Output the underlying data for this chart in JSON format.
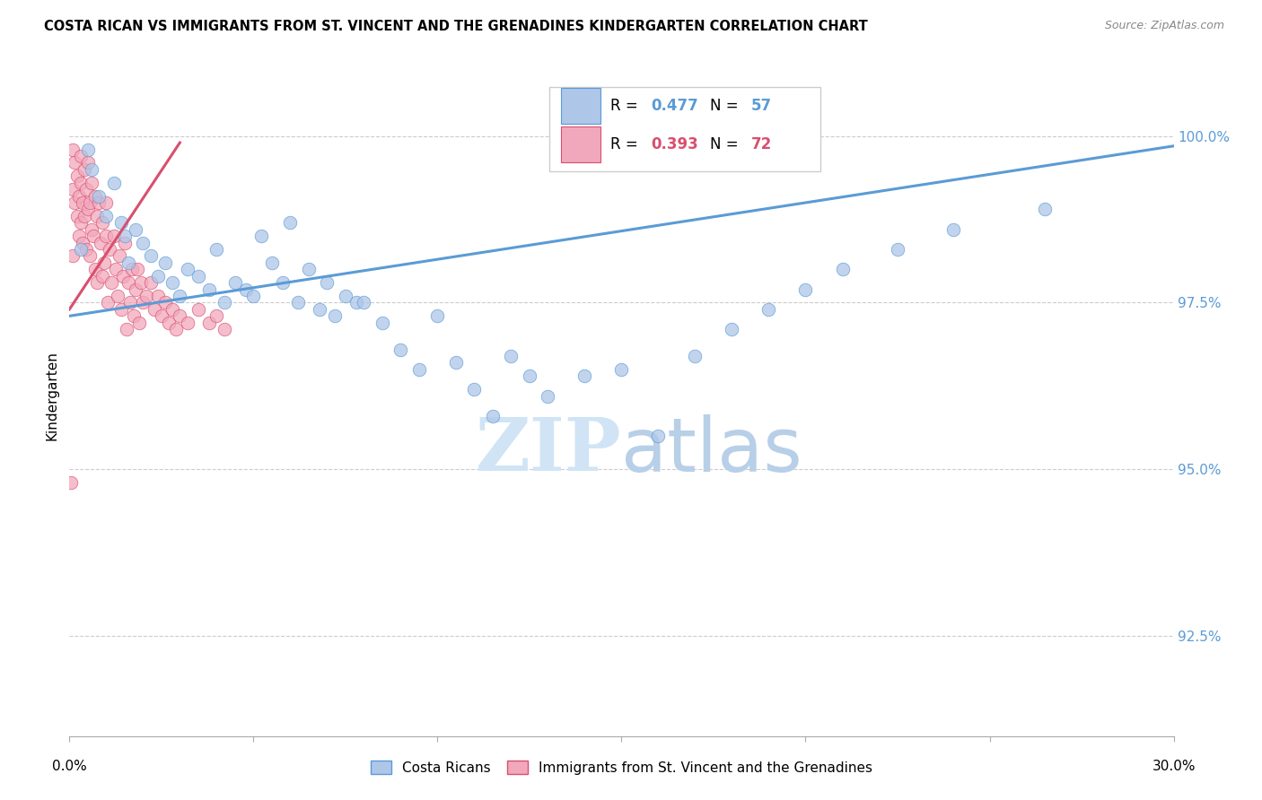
{
  "title": "COSTA RICAN VS IMMIGRANTS FROM ST. VINCENT AND THE GRENADINES KINDERGARTEN CORRELATION CHART",
  "source": "Source: ZipAtlas.com",
  "ylabel": "Kindergarten",
  "ytick_values": [
    92.5,
    95.0,
    97.5,
    100.0
  ],
  "xlim": [
    0.0,
    30.0
  ],
  "ylim": [
    91.0,
    101.2
  ],
  "legend_blue_label": "Costa Ricans",
  "legend_pink_label": "Immigrants from St. Vincent and the Grenadines",
  "blue_R": "0.477",
  "blue_N": "57",
  "pink_R": "0.393",
  "pink_N": "72",
  "blue_color": "#aec6e8",
  "pink_color": "#f2a8bc",
  "blue_line_color": "#5b9bd5",
  "pink_line_color": "#d94f6e",
  "watermark_color": "#d0e4f5",
  "blue_scatter_x": [
    0.3,
    0.5,
    0.6,
    0.8,
    1.0,
    1.2,
    1.4,
    1.5,
    1.6,
    1.8,
    2.0,
    2.2,
    2.4,
    2.6,
    2.8,
    3.0,
    3.2,
    3.5,
    3.8,
    4.0,
    4.2,
    4.5,
    4.8,
    5.0,
    5.2,
    5.5,
    5.8,
    6.0,
    6.2,
    6.5,
    6.8,
    7.0,
    7.2,
    7.5,
    7.8,
    8.0,
    8.5,
    9.0,
    9.5,
    10.0,
    10.5,
    11.0,
    11.5,
    12.0,
    12.5,
    13.0,
    14.0,
    15.0,
    16.0,
    17.0,
    18.0,
    19.0,
    20.0,
    21.0,
    22.5,
    24.0,
    26.5
  ],
  "blue_scatter_y": [
    98.3,
    99.8,
    99.5,
    99.1,
    98.8,
    99.3,
    98.7,
    98.5,
    98.1,
    98.6,
    98.4,
    98.2,
    97.9,
    98.1,
    97.8,
    97.6,
    98.0,
    97.9,
    97.7,
    98.3,
    97.5,
    97.8,
    97.7,
    97.6,
    98.5,
    98.1,
    97.8,
    98.7,
    97.5,
    98.0,
    97.4,
    97.8,
    97.3,
    97.6,
    97.5,
    97.5,
    97.2,
    96.8,
    96.5,
    97.3,
    96.6,
    96.2,
    95.8,
    96.7,
    96.4,
    96.1,
    96.4,
    96.5,
    95.5,
    96.7,
    97.1,
    97.4,
    97.7,
    98.0,
    98.3,
    98.6,
    98.9
  ],
  "pink_scatter_x": [
    0.05,
    0.1,
    0.1,
    0.15,
    0.15,
    0.2,
    0.2,
    0.25,
    0.25,
    0.3,
    0.3,
    0.3,
    0.35,
    0.35,
    0.4,
    0.4,
    0.45,
    0.45,
    0.5,
    0.5,
    0.55,
    0.55,
    0.6,
    0.6,
    0.65,
    0.7,
    0.7,
    0.75,
    0.75,
    0.8,
    0.85,
    0.9,
    0.9,
    0.95,
    1.0,
    1.0,
    1.05,
    1.1,
    1.15,
    1.2,
    1.25,
    1.3,
    1.35,
    1.4,
    1.45,
    1.5,
    1.55,
    1.6,
    1.65,
    1.7,
    1.75,
    1.8,
    1.85,
    1.9,
    1.95,
    2.0,
    2.1,
    2.2,
    2.3,
    2.4,
    2.5,
    2.6,
    2.7,
    2.8,
    2.9,
    3.0,
    3.2,
    3.5,
    3.8,
    4.0,
    4.2,
    0.08
  ],
  "pink_scatter_y": [
    94.8,
    99.8,
    99.2,
    99.6,
    99.0,
    99.4,
    98.8,
    99.1,
    98.5,
    99.3,
    98.7,
    99.7,
    99.0,
    98.4,
    98.8,
    99.5,
    99.2,
    98.3,
    98.9,
    99.6,
    98.2,
    99.0,
    98.6,
    99.3,
    98.5,
    98.0,
    99.1,
    97.8,
    98.8,
    99.0,
    98.4,
    97.9,
    98.7,
    98.1,
    98.5,
    99.0,
    97.5,
    98.3,
    97.8,
    98.5,
    98.0,
    97.6,
    98.2,
    97.4,
    97.9,
    98.4,
    97.1,
    97.8,
    97.5,
    98.0,
    97.3,
    97.7,
    98.0,
    97.2,
    97.8,
    97.5,
    97.6,
    97.8,
    97.4,
    97.6,
    97.3,
    97.5,
    97.2,
    97.4,
    97.1,
    97.3,
    97.2,
    97.4,
    97.2,
    97.3,
    97.1,
    98.2
  ]
}
